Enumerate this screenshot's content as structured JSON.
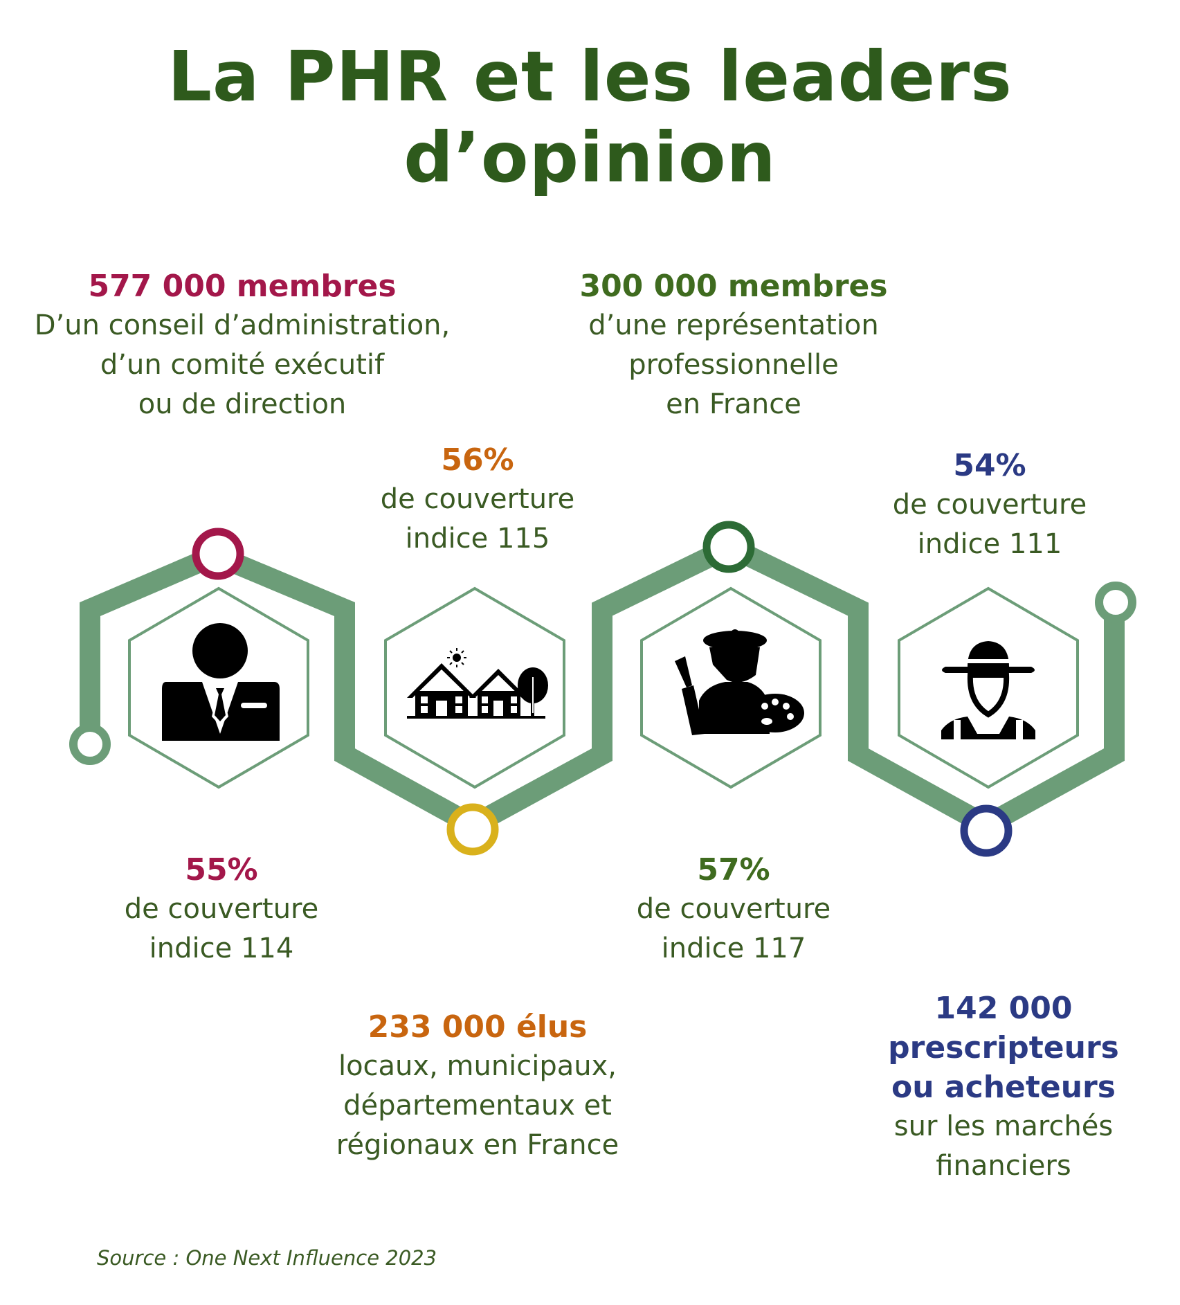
{
  "title": "La PHR et les leaders d’opinion",
  "colors": {
    "title": "#2e5a1c",
    "text": "#3a5a23",
    "path": "#6c9d78",
    "crimson": "#a3174a",
    "orange": "#c8650f",
    "gold": "#d9b11c",
    "green": "#3f6b1f",
    "dark_green": "#2c6b35",
    "navy": "#2b3a84"
  },
  "segments": [
    {
      "icon": "businessman-icon",
      "members": {
        "head": "577 000 membres",
        "lines": [
          "D’un conseil d’administration,",
          "d’un comité exécutif",
          "ou de direction"
        ]
      },
      "coverage": {
        "head": "55%",
        "lines": [
          "de couverture",
          "indice 114"
        ]
      }
    },
    {
      "icon": "houses-icon",
      "members": {
        "head": "233 000 élus",
        "lines": [
          "locaux, municipaux,",
          "départementaux et",
          "régionaux en France"
        ]
      },
      "coverage": {
        "head": "56%",
        "lines": [
          "de couverture",
          "indice 115"
        ]
      }
    },
    {
      "icon": "painter-icon",
      "members": {
        "head": "300 000 membres",
        "lines": [
          "d’une représentation",
          "professionnelle",
          "en France"
        ]
      },
      "coverage": {
        "head": "57%",
        "lines": [
          "de couverture",
          "indice 117"
        ]
      }
    },
    {
      "icon": "farmer-icon",
      "members": {
        "head": "142 000",
        "head_lines": [
          "142 000",
          "prescripteurs",
          "ou acheteurs"
        ],
        "lines": [
          "sur les marchés",
          "financiers"
        ]
      },
      "coverage": {
        "head": "54%",
        "lines": [
          "de couverture",
          "indice 111"
        ]
      }
    }
  ],
  "source": "Source : One Next Influence 2023"
}
